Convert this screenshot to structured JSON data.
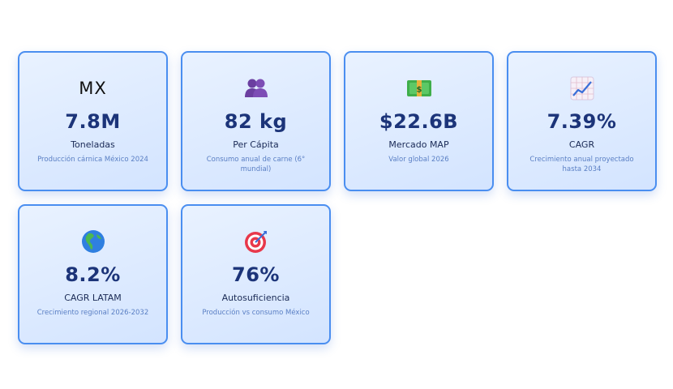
{
  "cards": [
    {
      "icon": "mx-flag-text-icon",
      "icon_text": "MX",
      "value": "7.8M",
      "label": "Toneladas",
      "desc": "Producción cárnica México 2024"
    },
    {
      "icon": "people-icon",
      "value": "82 kg",
      "label": "Per Cápita",
      "desc": "Consumo anual de carne (6° mundial)"
    },
    {
      "icon": "money-icon",
      "value": "$22.6B",
      "label": "Mercado MAP",
      "desc": "Valor global 2026"
    },
    {
      "icon": "chart-up-icon",
      "value": "7.39%",
      "label": "CAGR",
      "desc": "Crecimiento anual proyectado hasta 2034"
    },
    {
      "icon": "globe-americas-icon",
      "value": "8.2%",
      "label": "CAGR LATAM",
      "desc": "Crecimiento regional 2026-2032"
    },
    {
      "icon": "target-icon",
      "value": "76%",
      "label": "Autosuficiencia",
      "desc": "Producción vs consumo México"
    }
  ],
  "colors": {
    "card_border": "#4a8ef0",
    "value": "#1c3479",
    "desc": "#5a7fc4"
  }
}
